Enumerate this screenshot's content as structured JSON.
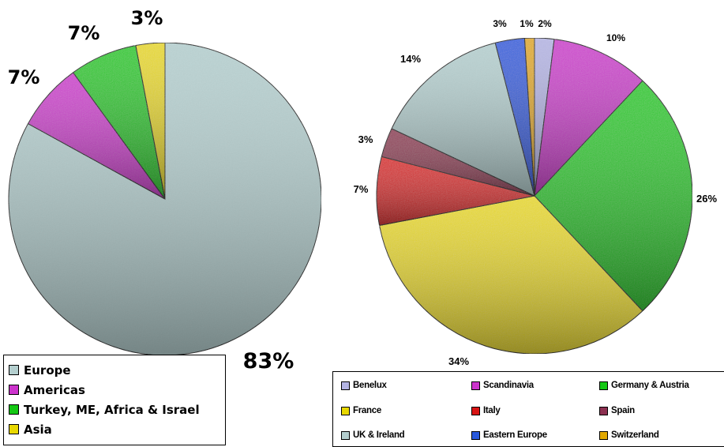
{
  "chart_data": [
    {
      "type": "pie",
      "title": "",
      "slices": [
        {
          "label": "Europe",
          "value": 83,
          "data_label": "83%",
          "color": "#b4cfcf"
        },
        {
          "label": "Americas",
          "value": 7,
          "data_label": "7%",
          "color": "#cc33cc"
        },
        {
          "label": "Turkey, ME, Africa & Israel",
          "value": 7,
          "data_label": "7%",
          "color": "#14c814"
        },
        {
          "label": "Asia",
          "value": 3,
          "data_label": "3%",
          "color": "#e8d800"
        }
      ],
      "legend_position": "bottom-left"
    },
    {
      "type": "pie",
      "title": "",
      "slices": [
        {
          "label": "Benelux",
          "value": 2,
          "data_label": "2%",
          "color": "#b4b4e4"
        },
        {
          "label": "Scandinavia",
          "value": 10,
          "data_label": "10%",
          "color": "#cc33cc"
        },
        {
          "label": "Germany & Austria",
          "value": 26,
          "data_label": "26%",
          "color": "#14c814"
        },
        {
          "label": "France",
          "value": 34,
          "data_label": "34%",
          "color": "#e8d800"
        },
        {
          "label": "Italy",
          "value": 7,
          "data_label": "7%",
          "color": "#d81414"
        },
        {
          "label": "Spain",
          "value": 3,
          "data_label": "3%",
          "color": "#8c3050"
        },
        {
          "label": "UK & Ireland",
          "value": 14,
          "data_label": "14%",
          "color": "#b4cfcf"
        },
        {
          "label": "Eastern Europe",
          "value": 3,
          "data_label": "3%",
          "color": "#2858dc"
        },
        {
          "label": "Switzerland",
          "value": 1,
          "data_label": "1%",
          "color": "#e0a800"
        }
      ],
      "legend_position": "bottom"
    }
  ]
}
